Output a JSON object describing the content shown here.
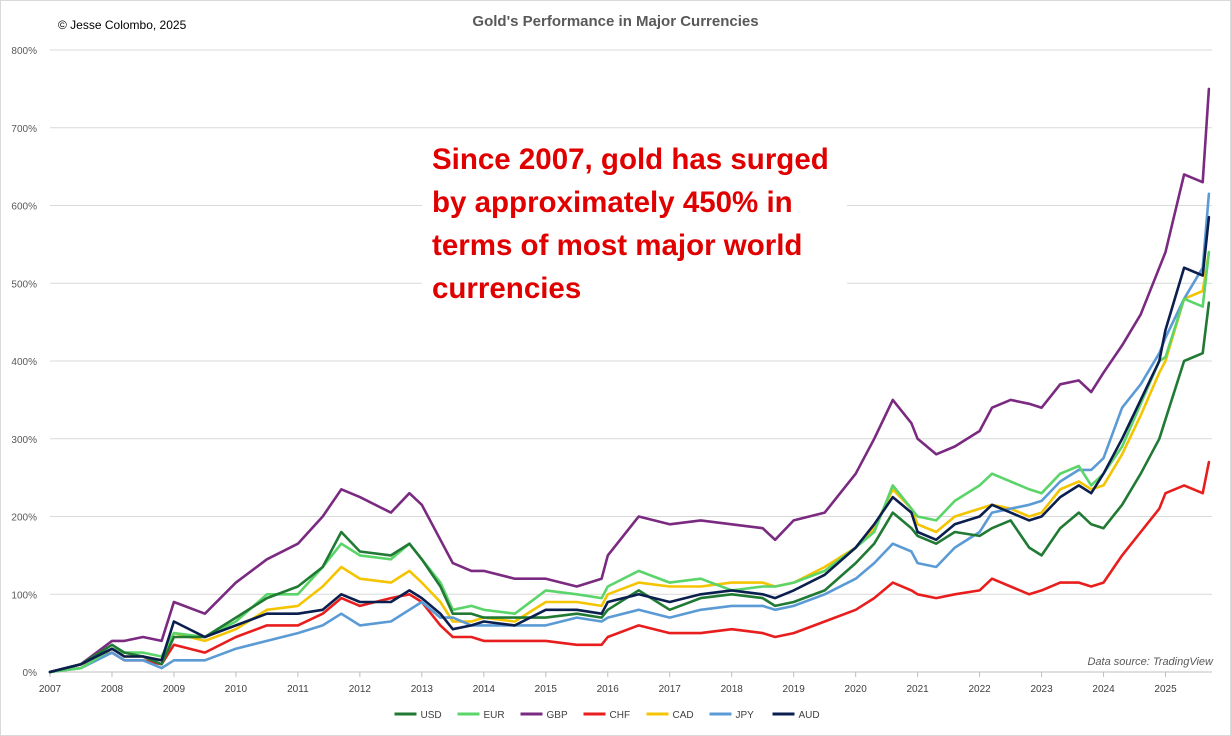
{
  "header": {
    "copyright": "© Jesse Colombo, 2025"
  },
  "annotation": {
    "text": "Since 2007, gold has surged by approximately 450% in terms of most major world currencies"
  },
  "footer": {
    "source": "Data source: TradingView"
  },
  "colors": {
    "USD": "#217a34",
    "EUR": "#5bd46a",
    "GBP": "#7a2a80",
    "CHF": "#e81e1e",
    "CAD": "#f5c400",
    "JPY": "#5b9bd5",
    "AUD": "#0b1f4f",
    "grid": "#d9d9d9",
    "axis_text": "#595959"
  },
  "chart_data": {
    "type": "line",
    "title": "Gold's Performance in Major Currencies",
    "xlabel": "",
    "ylabel": "",
    "xlim": [
      2007,
      2025.75
    ],
    "ylim": [
      0,
      800
    ],
    "yticks": [
      0,
      100,
      200,
      300,
      400,
      500,
      600,
      700,
      800
    ],
    "ytick_labels": [
      "0%",
      "100%",
      "200%",
      "300%",
      "400%",
      "500%",
      "600%",
      "700%",
      "800%"
    ],
    "xticks": [
      2007,
      2008,
      2009,
      2010,
      2011,
      2012,
      2013,
      2014,
      2015,
      2016,
      2017,
      2018,
      2019,
      2020,
      2021,
      2022,
      2023,
      2024,
      2025
    ],
    "xtick_labels": [
      "2007",
      "2008",
      "2009",
      "2010",
      "2011",
      "2012",
      "2013",
      "2014",
      "2015",
      "2016",
      "2017",
      "2018",
      "2019",
      "2020",
      "2021",
      "2022",
      "2023",
      "2024",
      "2025"
    ],
    "grid": "horizontal",
    "legend_position": "bottom",
    "x": [
      2007.0,
      2007.5,
      2008.0,
      2008.2,
      2008.5,
      2008.8,
      2009.0,
      2009.5,
      2010.0,
      2010.5,
      2011.0,
      2011.4,
      2011.7,
      2012.0,
      2012.5,
      2012.8,
      2013.0,
      2013.3,
      2013.5,
      2013.8,
      2014.0,
      2014.5,
      2015.0,
      2015.5,
      2015.9,
      2016.0,
      2016.5,
      2017.0,
      2017.5,
      2018.0,
      2018.5,
      2018.7,
      2019.0,
      2019.5,
      2020.0,
      2020.3,
      2020.6,
      2020.9,
      2021.0,
      2021.3,
      2021.6,
      2022.0,
      2022.2,
      2022.5,
      2022.8,
      2023.0,
      2023.3,
      2023.6,
      2023.8,
      2024.0,
      2024.3,
      2024.6,
      2024.9,
      2025.0,
      2025.3,
      2025.6,
      2025.7
    ],
    "series": [
      {
        "name": "USD",
        "values": [
          0,
          10,
          35,
          25,
          20,
          10,
          45,
          45,
          70,
          95,
          110,
          135,
          180,
          155,
          150,
          165,
          145,
          110,
          75,
          75,
          70,
          70,
          70,
          75,
          70,
          80,
          105,
          80,
          95,
          100,
          95,
          85,
          90,
          105,
          140,
          165,
          205,
          185,
          175,
          165,
          180,
          175,
          185,
          195,
          160,
          150,
          185,
          205,
          190,
          185,
          215,
          255,
          300,
          325,
          400,
          410,
          475
        ]
      },
      {
        "name": "EUR",
        "values": [
          0,
          5,
          30,
          25,
          25,
          20,
          50,
          45,
          65,
          100,
          100,
          135,
          165,
          150,
          145,
          165,
          145,
          115,
          80,
          85,
          80,
          75,
          105,
          100,
          95,
          110,
          130,
          115,
          120,
          105,
          110,
          110,
          115,
          130,
          160,
          180,
          240,
          210,
          200,
          195,
          220,
          240,
          255,
          245,
          235,
          230,
          255,
          265,
          240,
          255,
          290,
          345,
          400,
          405,
          480,
          470,
          540
        ]
      },
      {
        "name": "GBP",
        "values": [
          0,
          10,
          40,
          40,
          45,
          40,
          90,
          75,
          115,
          145,
          165,
          200,
          235,
          225,
          205,
          230,
          215,
          170,
          140,
          130,
          130,
          120,
          120,
          110,
          120,
          150,
          200,
          190,
          195,
          190,
          185,
          170,
          195,
          205,
          255,
          300,
          350,
          320,
          300,
          280,
          290,
          310,
          340,
          350,
          345,
          340,
          370,
          375,
          360,
          385,
          420,
          460,
          520,
          540,
          640,
          630,
          750
        ]
      },
      {
        "name": "CHF",
        "values": [
          0,
          10,
          25,
          15,
          15,
          10,
          35,
          25,
          45,
          60,
          60,
          75,
          95,
          85,
          95,
          100,
          90,
          60,
          45,
          45,
          40,
          40,
          40,
          35,
          35,
          45,
          60,
          50,
          50,
          55,
          50,
          45,
          50,
          65,
          80,
          95,
          115,
          105,
          100,
          95,
          100,
          105,
          120,
          110,
          100,
          105,
          115,
          115,
          110,
          115,
          150,
          180,
          210,
          230,
          240,
          230,
          270
        ]
      },
      {
        "name": "CAD",
        "values": [
          0,
          5,
          30,
          20,
          20,
          15,
          50,
          40,
          55,
          80,
          85,
          110,
          135,
          120,
          115,
          130,
          115,
          90,
          65,
          65,
          70,
          65,
          90,
          90,
          85,
          100,
          115,
          110,
          110,
          115,
          115,
          110,
          115,
          135,
          160,
          185,
          235,
          210,
          190,
          180,
          200,
          210,
          215,
          210,
          200,
          205,
          235,
          245,
          235,
          240,
          280,
          330,
          385,
          400,
          480,
          490,
          540
        ]
      },
      {
        "name": "JPY",
        "values": [
          0,
          5,
          25,
          15,
          15,
          5,
          15,
          15,
          30,
          40,
          50,
          60,
          75,
          60,
          65,
          80,
          90,
          70,
          70,
          60,
          60,
          60,
          60,
          70,
          65,
          70,
          80,
          70,
          80,
          85,
          85,
          80,
          85,
          100,
          120,
          140,
          165,
          155,
          140,
          135,
          160,
          180,
          205,
          210,
          215,
          220,
          245,
          260,
          260,
          275,
          340,
          370,
          410,
          430,
          480,
          520,
          615
        ]
      },
      {
        "name": "AUD",
        "values": [
          0,
          10,
          30,
          20,
          20,
          15,
          65,
          45,
          60,
          75,
          75,
          80,
          100,
          90,
          90,
          105,
          95,
          75,
          55,
          60,
          65,
          60,
          80,
          80,
          75,
          90,
          100,
          90,
          100,
          105,
          100,
          95,
          105,
          125,
          160,
          190,
          225,
          205,
          180,
          170,
          190,
          200,
          215,
          205,
          195,
          200,
          225,
          240,
          230,
          255,
          300,
          350,
          400,
          440,
          520,
          510,
          585
        ]
      }
    ]
  }
}
